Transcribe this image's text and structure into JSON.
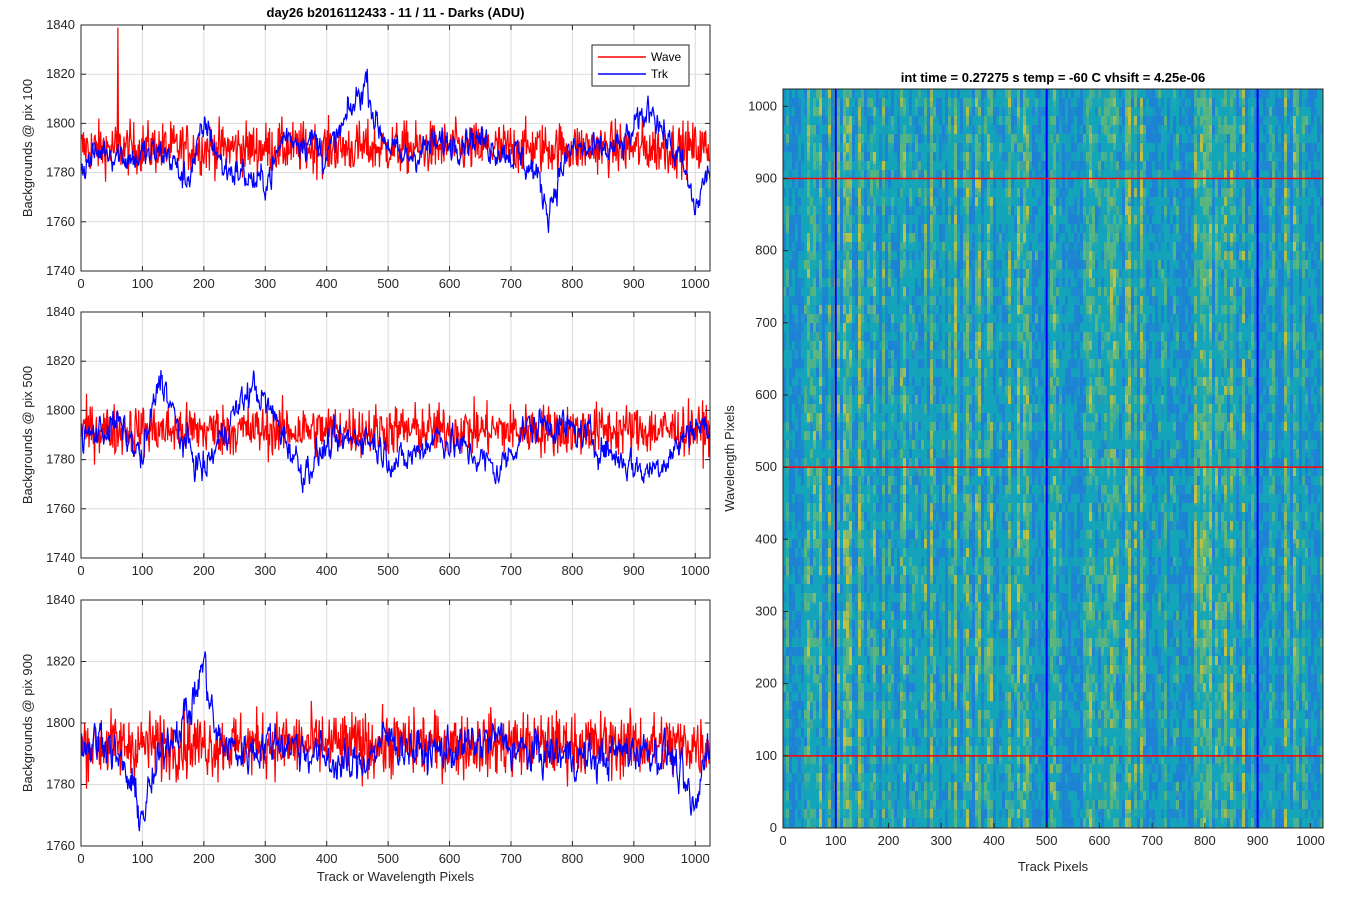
{
  "chart_data": [
    {
      "type": "line",
      "title": "day26 b2016112433 - 11 / 11 - Darks (ADU)",
      "xlabel": "",
      "ylabel": "Backgrounds @ pix 100",
      "xlim": [
        0,
        1024
      ],
      "ylim": [
        1740,
        1840
      ],
      "xticks": [
        0,
        100,
        200,
        300,
        400,
        500,
        600,
        700,
        800,
        900,
        1000
      ],
      "yticks": [
        1740,
        1760,
        1780,
        1800,
        1820,
        1840
      ],
      "grid": true,
      "legend": {
        "placement": "top-right",
        "entries": [
          "Wave",
          "Trk"
        ]
      },
      "series": [
        {
          "name": "Wave",
          "color": "#ff0000",
          "mean": 1790,
          "noise": 10,
          "peaks": [
            {
              "x": 60,
              "y": 1839
            }
          ]
        },
        {
          "name": "Trk",
          "color": "#0000ff",
          "mean": 1790,
          "points": [
            [
              0,
              1782
            ],
            [
              40,
              1790
            ],
            [
              80,
              1786
            ],
            [
              140,
              1788
            ],
            [
              170,
              1776
            ],
            [
              205,
              1800
            ],
            [
              230,
              1782
            ],
            [
              260,
              1780
            ],
            [
              290,
              1775
            ],
            [
              310,
              1780
            ],
            [
              330,
              1795
            ],
            [
              380,
              1793
            ],
            [
              400,
              1786
            ],
            [
              430,
              1800
            ],
            [
              465,
              1818
            ],
            [
              480,
              1800
            ],
            [
              520,
              1785
            ],
            [
              560,
              1790
            ],
            [
              600,
              1792
            ],
            [
              630,
              1795
            ],
            [
              680,
              1790
            ],
            [
              710,
              1787
            ],
            [
              740,
              1780
            ],
            [
              760,
              1765
            ],
            [
              780,
              1780
            ],
            [
              800,
              1790
            ],
            [
              840,
              1788
            ],
            [
              880,
              1790
            ],
            [
              910,
              1800
            ],
            [
              930,
              1808
            ],
            [
              950,
              1795
            ],
            [
              980,
              1782
            ],
            [
              1000,
              1765
            ],
            [
              1020,
              1780
            ]
          ]
        }
      ]
    },
    {
      "type": "line",
      "title": "",
      "xlabel": "",
      "ylabel": "Backgrounds @ pix 500",
      "xlim": [
        0,
        1024
      ],
      "ylim": [
        1740,
        1840
      ],
      "xticks": [
        0,
        100,
        200,
        300,
        400,
        500,
        600,
        700,
        800,
        900,
        1000
      ],
      "yticks": [
        1740,
        1760,
        1780,
        1800,
        1820,
        1840
      ],
      "grid": true,
      "series": [
        {
          "name": "Wave",
          "color": "#ff0000",
          "mean": 1792,
          "noise": 10
        },
        {
          "name": "Trk",
          "color": "#0000ff",
          "mean": 1788,
          "points": [
            [
              0,
              1788
            ],
            [
              60,
              1795
            ],
            [
              100,
              1780
            ],
            [
              130,
              1815
            ],
            [
              160,
              1790
            ],
            [
              200,
              1775
            ],
            [
              240,
              1795
            ],
            [
              280,
              1810
            ],
            [
              320,
              1795
            ],
            [
              360,
              1775
            ],
            [
              400,
              1785
            ],
            [
              460,
              1790
            ],
            [
              520,
              1778
            ],
            [
              580,
              1790
            ],
            [
              640,
              1782
            ],
            [
              680,
              1775
            ],
            [
              720,
              1792
            ],
            [
              760,
              1795
            ],
            [
              820,
              1790
            ],
            [
              880,
              1780
            ],
            [
              920,
              1775
            ],
            [
              960,
              1782
            ],
            [
              1000,
              1795
            ],
            [
              1020,
              1792
            ]
          ]
        }
      ]
    },
    {
      "type": "line",
      "title": "",
      "xlabel": "Track or Wavelength Pixels",
      "ylabel": "Backgrounds @ pix 900",
      "xlim": [
        0,
        1024
      ],
      "ylim": [
        1760,
        1840
      ],
      "xticks": [
        0,
        100,
        200,
        300,
        400,
        500,
        600,
        700,
        800,
        900,
        1000
      ],
      "yticks": [
        1760,
        1780,
        1800,
        1820,
        1840
      ],
      "grid": true,
      "series": [
        {
          "name": "Wave",
          "color": "#ff0000",
          "mean": 1793,
          "noise": 10
        },
        {
          "name": "Trk",
          "color": "#0000ff",
          "mean": 1790,
          "points": [
            [
              0,
              1792
            ],
            [
              40,
              1796
            ],
            [
              80,
              1780
            ],
            [
              100,
              1770
            ],
            [
              140,
              1795
            ],
            [
              180,
              1805
            ],
            [
              200,
              1820
            ],
            [
              220,
              1795
            ],
            [
              260,
              1790
            ],
            [
              320,
              1795
            ],
            [
              380,
              1790
            ],
            [
              440,
              1785
            ],
            [
              500,
              1795
            ],
            [
              560,
              1790
            ],
            [
              620,
              1792
            ],
            [
              680,
              1795
            ],
            [
              720,
              1790
            ],
            [
              780,
              1790
            ],
            [
              840,
              1788
            ],
            [
              900,
              1792
            ],
            [
              960,
              1790
            ],
            [
              1000,
              1770
            ],
            [
              1020,
              1795
            ]
          ]
        }
      ]
    },
    {
      "type": "heatmap",
      "title": "int time = 0.27275 s    temp = -60 C    vhsift = 4.25e-06",
      "xlabel": "Track Pixels",
      "ylabel": "Wavelength Pixels",
      "xlim": [
        0,
        1024
      ],
      "ylim": [
        0,
        1024
      ],
      "xticks": [
        0,
        100,
        200,
        300,
        400,
        500,
        600,
        700,
        800,
        900,
        1000
      ],
      "yticks": [
        0,
        100,
        200,
        300,
        400,
        500,
        600,
        700,
        800,
        900,
        1000
      ],
      "colormap": [
        "#1f7fd6",
        "#13a6b8",
        "#5fb87a",
        "#c8c43a"
      ],
      "vertical_lines": {
        "color": "#0000ff",
        "x": [
          100,
          500,
          900
        ]
      },
      "horizontal_lines": {
        "color": "#ff0000",
        "y": [
          100,
          500,
          900
        ]
      }
    }
  ]
}
